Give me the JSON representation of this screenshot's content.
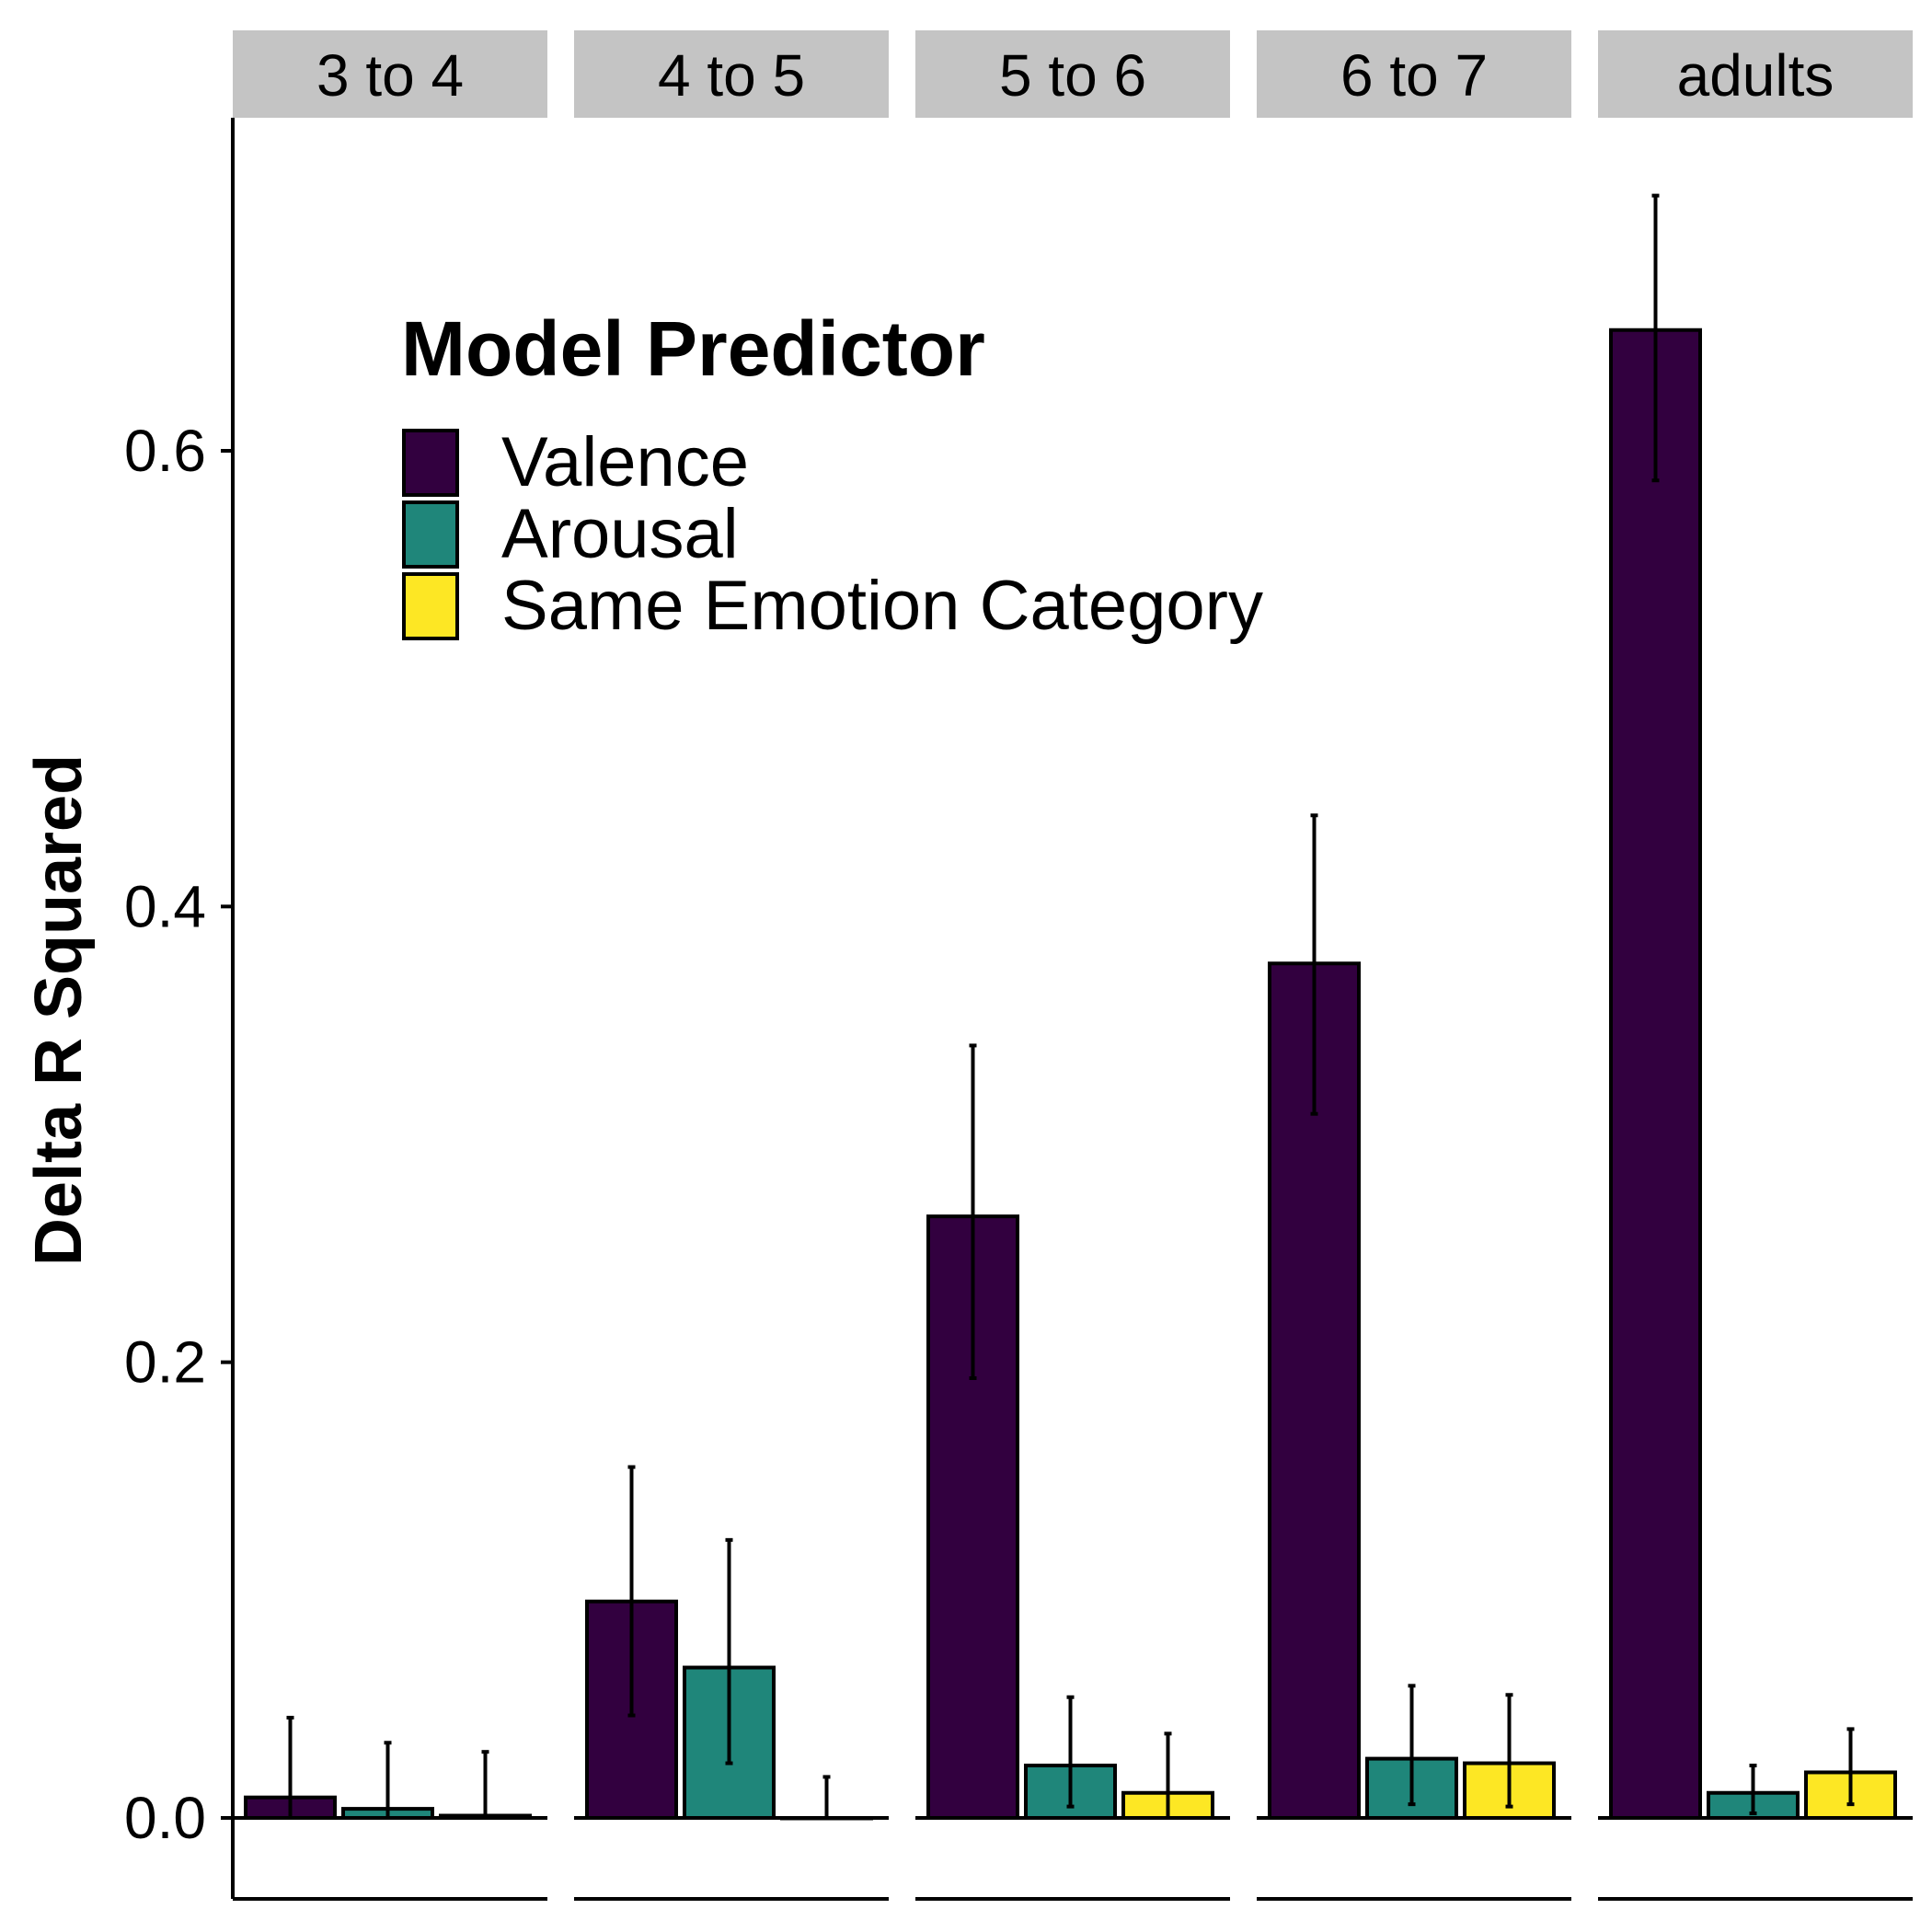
{
  "chart_data": {
    "type": "bar",
    "facets": [
      "3 to 4",
      "4 to 5",
      "5 to 6",
      "6 to 7",
      "adults"
    ],
    "ylabel": "Delta R Squared",
    "xlabel": "",
    "ylim": [
      -0.036,
      0.74
    ],
    "yticks": [
      0.0,
      0.2,
      0.4,
      0.6
    ],
    "ytick_labels": [
      "0.0",
      "0.2",
      "0.4",
      "0.6"
    ],
    "legend": {
      "title": "Model Predictor",
      "position": "top-left",
      "entries": [
        "Valence",
        "Arousal",
        "Same Emotion Category"
      ]
    },
    "series": [
      {
        "name": "Valence",
        "color": "#32003F",
        "values": [
          0.009,
          0.095,
          0.264,
          0.375,
          0.653
        ],
        "err_low": [
          0.0,
          0.045,
          0.193,
          0.309,
          0.587
        ],
        "err_high": [
          0.044,
          0.154,
          0.339,
          0.44,
          0.712
        ]
      },
      {
        "name": "Arousal",
        "color": "#1F867A",
        "values": [
          0.004,
          0.066,
          0.023,
          0.026,
          0.011
        ],
        "err_low": [
          0.0,
          0.024,
          0.005,
          0.006,
          0.002
        ],
        "err_high": [
          0.033,
          0.122,
          0.053,
          0.058,
          0.023
        ]
      },
      {
        "name": "Same Emotion Category",
        "color": "#FDE724",
        "values": [
          0.001,
          0.0,
          0.011,
          0.024,
          0.02
        ],
        "err_low": [
          0.0,
          0.0,
          0.0,
          0.005,
          0.006
        ],
        "err_high": [
          0.029,
          0.018,
          0.037,
          0.054,
          0.039
        ]
      }
    ]
  }
}
